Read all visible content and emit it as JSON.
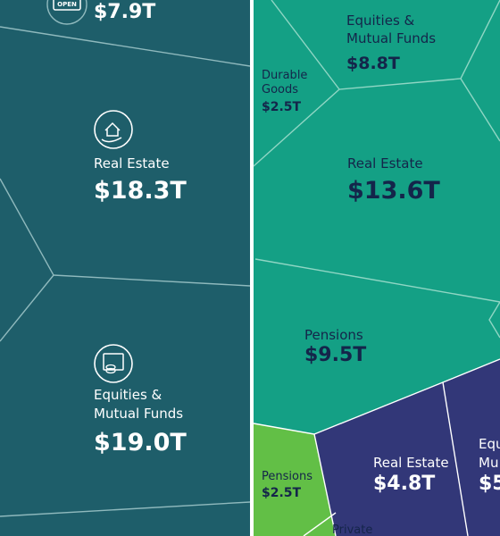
{
  "chart_data": {
    "type": "voronoi treemap",
    "groups": [
      {
        "color": "#1e5e6a",
        "cells": [
          {
            "label": "",
            "value": "$7.9T",
            "icon": "open-sign-icon"
          },
          {
            "label": "Real Estate",
            "value": "$18.3T",
            "icon": "house-in-hand-icon"
          },
          {
            "label": "Equities & Mutual Funds",
            "value": "$19.0T",
            "icon": "certificate-coins-icon"
          }
        ]
      },
      {
        "color": "#14a085",
        "cells": [
          {
            "label": "Equities & Mutual Funds",
            "value": "$8.8T"
          },
          {
            "label": "Durable Goods",
            "value": "$2.5T"
          },
          {
            "label": "Real Estate",
            "value": "$13.6T"
          },
          {
            "label": "Pensions",
            "value": "$9.5T"
          }
        ]
      },
      {
        "color": "#62bf46",
        "cells": [
          {
            "label": "Pensions",
            "value": "$2.5T"
          },
          {
            "label": "Private",
            "value": ""
          }
        ]
      },
      {
        "color": "#323778",
        "cells": [
          {
            "label": "Real Estate",
            "value": "$4.8T"
          },
          {
            "label": "Equ Mu",
            "value": "$5"
          }
        ]
      }
    ]
  }
}
